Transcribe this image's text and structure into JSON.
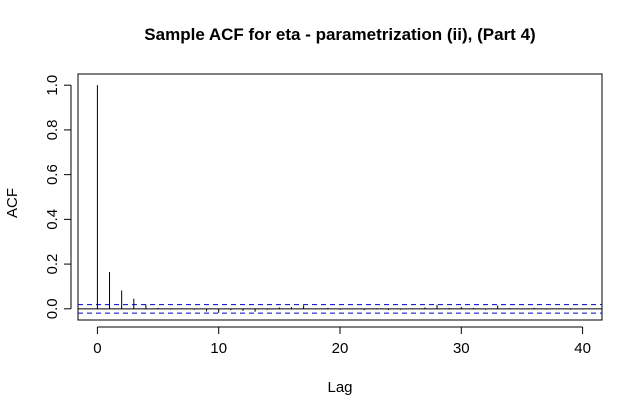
{
  "chart_data": {
    "type": "bar",
    "title": "Sample ACF for eta - parametrization (ii), (Part 4)",
    "xlabel": "Lag",
    "ylabel": "ACF",
    "xlim": [
      -1.6,
      41.6
    ],
    "ylim": [
      -0.05,
      1.05
    ],
    "x_ticks": [
      0,
      10,
      20,
      30,
      40
    ],
    "y_ticks": [
      0.0,
      0.2,
      0.4,
      0.6,
      0.8,
      1.0
    ],
    "x_tick_labels": [
      "0",
      "10",
      "20",
      "30",
      "40"
    ],
    "y_tick_labels": [
      "0.0",
      "0.2",
      "0.4",
      "0.6",
      "0.8",
      "1.0"
    ],
    "lags": [
      0,
      1,
      2,
      3,
      4,
      5,
      6,
      7,
      8,
      9,
      10,
      11,
      12,
      13,
      14,
      15,
      16,
      17,
      18,
      19,
      20,
      21,
      22,
      23,
      24,
      25,
      26,
      27,
      28,
      29,
      30,
      31,
      32,
      33,
      34,
      35,
      36,
      37,
      38,
      39,
      40
    ],
    "acf": [
      1.0,
      0.165,
      0.082,
      0.045,
      0.018,
      0.004,
      -0.003,
      0.002,
      -0.004,
      -0.012,
      -0.018,
      -0.006,
      -0.009,
      -0.013,
      -0.004,
      0.006,
      0.008,
      0.015,
      -0.002,
      0.004,
      -0.004,
      -0.002,
      -0.006,
      0.003,
      -0.005,
      -0.004,
      0.002,
      0.006,
      0.018,
      0.004,
      0.008,
      0.004,
      -0.004,
      0.015,
      0.003,
      -0.002,
      0.004,
      -0.003,
      0.002,
      -0.004,
      -0.003
    ],
    "confidence_band": 0.019,
    "colors": {
      "bars": "#000000",
      "zero_line": "#000000",
      "confidence_lines": "#0000cc"
    }
  }
}
